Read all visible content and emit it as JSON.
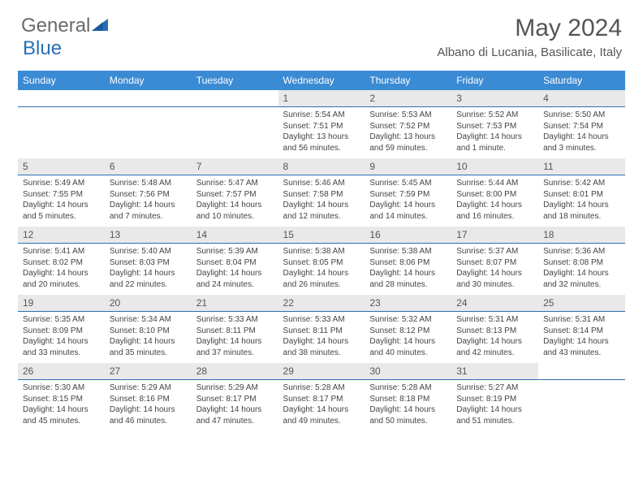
{
  "logo": {
    "text1": "General",
    "text2": "Blue"
  },
  "title": "May 2024",
  "location": "Albano di Lucania, Basilicate, Italy",
  "weekdays": [
    "Sunday",
    "Monday",
    "Tuesday",
    "Wednesday",
    "Thursday",
    "Friday",
    "Saturday"
  ],
  "colors": {
    "header_bg": "#3b8bd4",
    "header_text": "#ffffff",
    "daynum_bg": "#e9e9e9",
    "border": "#2a6fb5",
    "text": "#444444"
  },
  "weeks": [
    [
      null,
      null,
      null,
      {
        "num": "1",
        "sunrise": "Sunrise: 5:54 AM",
        "sunset": "Sunset: 7:51 PM",
        "daylight": "Daylight: 13 hours and 56 minutes."
      },
      {
        "num": "2",
        "sunrise": "Sunrise: 5:53 AM",
        "sunset": "Sunset: 7:52 PM",
        "daylight": "Daylight: 13 hours and 59 minutes."
      },
      {
        "num": "3",
        "sunrise": "Sunrise: 5:52 AM",
        "sunset": "Sunset: 7:53 PM",
        "daylight": "Daylight: 14 hours and 1 minute."
      },
      {
        "num": "4",
        "sunrise": "Sunrise: 5:50 AM",
        "sunset": "Sunset: 7:54 PM",
        "daylight": "Daylight: 14 hours and 3 minutes."
      }
    ],
    [
      {
        "num": "5",
        "sunrise": "Sunrise: 5:49 AM",
        "sunset": "Sunset: 7:55 PM",
        "daylight": "Daylight: 14 hours and 5 minutes."
      },
      {
        "num": "6",
        "sunrise": "Sunrise: 5:48 AM",
        "sunset": "Sunset: 7:56 PM",
        "daylight": "Daylight: 14 hours and 7 minutes."
      },
      {
        "num": "7",
        "sunrise": "Sunrise: 5:47 AM",
        "sunset": "Sunset: 7:57 PM",
        "daylight": "Daylight: 14 hours and 10 minutes."
      },
      {
        "num": "8",
        "sunrise": "Sunrise: 5:46 AM",
        "sunset": "Sunset: 7:58 PM",
        "daylight": "Daylight: 14 hours and 12 minutes."
      },
      {
        "num": "9",
        "sunrise": "Sunrise: 5:45 AM",
        "sunset": "Sunset: 7:59 PM",
        "daylight": "Daylight: 14 hours and 14 minutes."
      },
      {
        "num": "10",
        "sunrise": "Sunrise: 5:44 AM",
        "sunset": "Sunset: 8:00 PM",
        "daylight": "Daylight: 14 hours and 16 minutes."
      },
      {
        "num": "11",
        "sunrise": "Sunrise: 5:42 AM",
        "sunset": "Sunset: 8:01 PM",
        "daylight": "Daylight: 14 hours and 18 minutes."
      }
    ],
    [
      {
        "num": "12",
        "sunrise": "Sunrise: 5:41 AM",
        "sunset": "Sunset: 8:02 PM",
        "daylight": "Daylight: 14 hours and 20 minutes."
      },
      {
        "num": "13",
        "sunrise": "Sunrise: 5:40 AM",
        "sunset": "Sunset: 8:03 PM",
        "daylight": "Daylight: 14 hours and 22 minutes."
      },
      {
        "num": "14",
        "sunrise": "Sunrise: 5:39 AM",
        "sunset": "Sunset: 8:04 PM",
        "daylight": "Daylight: 14 hours and 24 minutes."
      },
      {
        "num": "15",
        "sunrise": "Sunrise: 5:38 AM",
        "sunset": "Sunset: 8:05 PM",
        "daylight": "Daylight: 14 hours and 26 minutes."
      },
      {
        "num": "16",
        "sunrise": "Sunrise: 5:38 AM",
        "sunset": "Sunset: 8:06 PM",
        "daylight": "Daylight: 14 hours and 28 minutes."
      },
      {
        "num": "17",
        "sunrise": "Sunrise: 5:37 AM",
        "sunset": "Sunset: 8:07 PM",
        "daylight": "Daylight: 14 hours and 30 minutes."
      },
      {
        "num": "18",
        "sunrise": "Sunrise: 5:36 AM",
        "sunset": "Sunset: 8:08 PM",
        "daylight": "Daylight: 14 hours and 32 minutes."
      }
    ],
    [
      {
        "num": "19",
        "sunrise": "Sunrise: 5:35 AM",
        "sunset": "Sunset: 8:09 PM",
        "daylight": "Daylight: 14 hours and 33 minutes."
      },
      {
        "num": "20",
        "sunrise": "Sunrise: 5:34 AM",
        "sunset": "Sunset: 8:10 PM",
        "daylight": "Daylight: 14 hours and 35 minutes."
      },
      {
        "num": "21",
        "sunrise": "Sunrise: 5:33 AM",
        "sunset": "Sunset: 8:11 PM",
        "daylight": "Daylight: 14 hours and 37 minutes."
      },
      {
        "num": "22",
        "sunrise": "Sunrise: 5:33 AM",
        "sunset": "Sunset: 8:11 PM",
        "daylight": "Daylight: 14 hours and 38 minutes."
      },
      {
        "num": "23",
        "sunrise": "Sunrise: 5:32 AM",
        "sunset": "Sunset: 8:12 PM",
        "daylight": "Daylight: 14 hours and 40 minutes."
      },
      {
        "num": "24",
        "sunrise": "Sunrise: 5:31 AM",
        "sunset": "Sunset: 8:13 PM",
        "daylight": "Daylight: 14 hours and 42 minutes."
      },
      {
        "num": "25",
        "sunrise": "Sunrise: 5:31 AM",
        "sunset": "Sunset: 8:14 PM",
        "daylight": "Daylight: 14 hours and 43 minutes."
      }
    ],
    [
      {
        "num": "26",
        "sunrise": "Sunrise: 5:30 AM",
        "sunset": "Sunset: 8:15 PM",
        "daylight": "Daylight: 14 hours and 45 minutes."
      },
      {
        "num": "27",
        "sunrise": "Sunrise: 5:29 AM",
        "sunset": "Sunset: 8:16 PM",
        "daylight": "Daylight: 14 hours and 46 minutes."
      },
      {
        "num": "28",
        "sunrise": "Sunrise: 5:29 AM",
        "sunset": "Sunset: 8:17 PM",
        "daylight": "Daylight: 14 hours and 47 minutes."
      },
      {
        "num": "29",
        "sunrise": "Sunrise: 5:28 AM",
        "sunset": "Sunset: 8:17 PM",
        "daylight": "Daylight: 14 hours and 49 minutes."
      },
      {
        "num": "30",
        "sunrise": "Sunrise: 5:28 AM",
        "sunset": "Sunset: 8:18 PM",
        "daylight": "Daylight: 14 hours and 50 minutes."
      },
      {
        "num": "31",
        "sunrise": "Sunrise: 5:27 AM",
        "sunset": "Sunset: 8:19 PM",
        "daylight": "Daylight: 14 hours and 51 minutes."
      },
      null
    ]
  ]
}
